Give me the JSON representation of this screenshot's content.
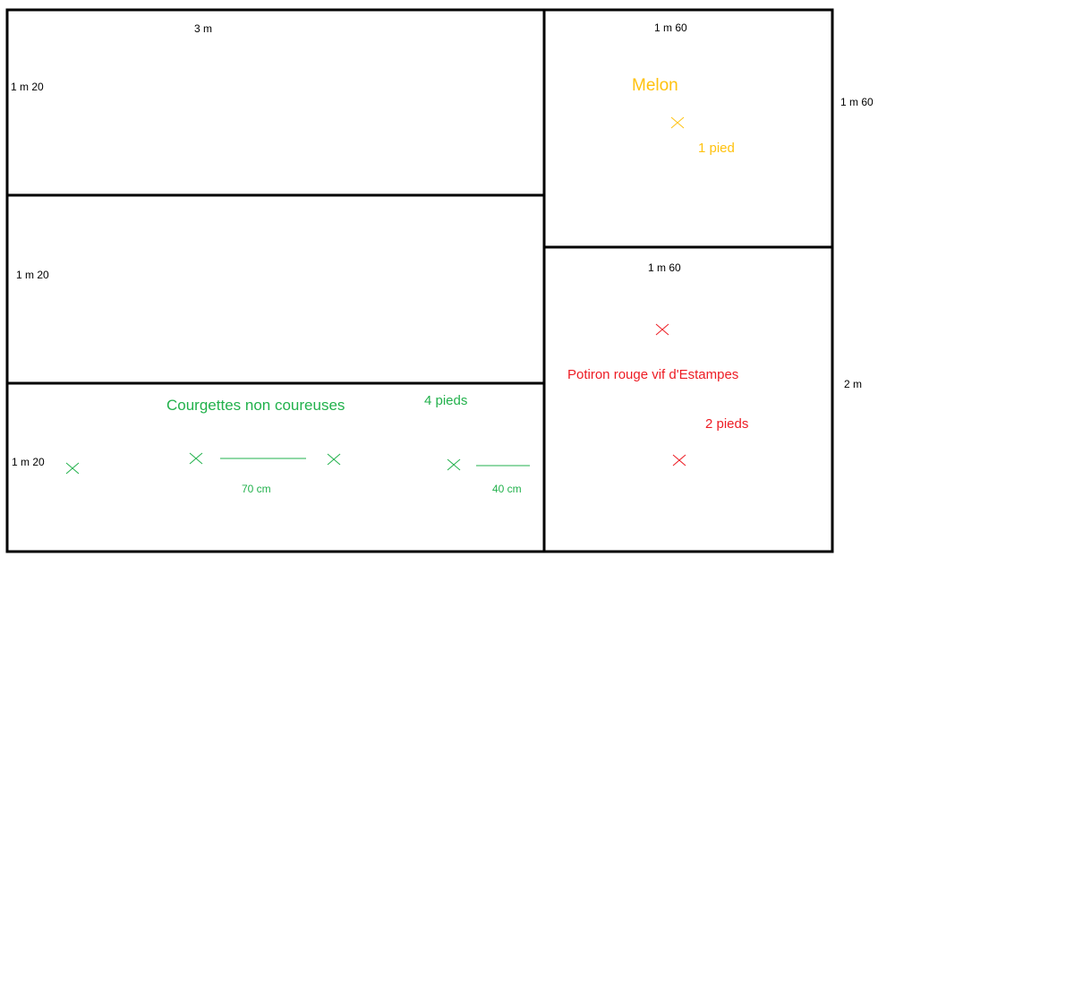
{
  "colors": {
    "outline": "#000000",
    "courgette": "#22b14c",
    "melon": "#ffc20e",
    "potiron": "#ed1c24"
  },
  "dimensions": {
    "top_width": "3 m",
    "left_bed1_height": "1 m 20",
    "left_bed2_height": "1 m 20",
    "left_bed3_height": "1 m 20",
    "melon_bed_width": "1 m 60",
    "melon_bed_height": "1 m 60",
    "potiron_bed_width": "1 m 60",
    "potiron_bed_height": "2 m"
  },
  "melon": {
    "label": "Melon",
    "count": "1 pied"
  },
  "potiron": {
    "label": "Potiron rouge vif d'Estampes",
    "count": "2 pieds"
  },
  "courgettes": {
    "label": "Courgettes non coureuses",
    "count": "4 pieds",
    "spacing_plants": "70 cm",
    "spacing_edge": "40 cm"
  },
  "icons": {
    "plant_marker": "cross-icon"
  }
}
